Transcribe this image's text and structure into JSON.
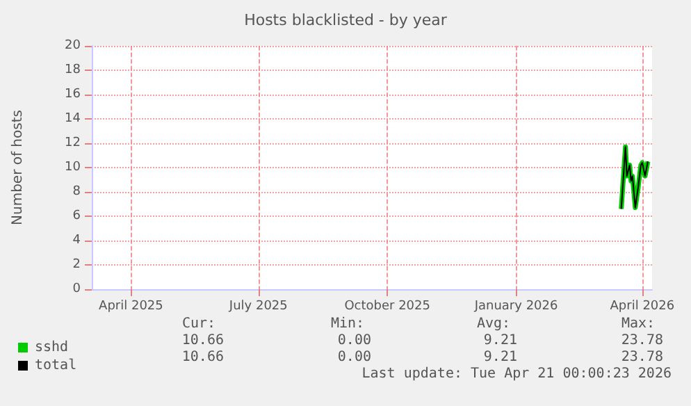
{
  "chart_data": {
    "type": "line",
    "title": "Hosts blacklisted - by year",
    "ylabel": "Number of hosts",
    "x": [
      "2026-04-01",
      "2026-04-04",
      "2026-04-05",
      "2026-04-07",
      "2026-04-08",
      "2026-04-09",
      "2026-04-11",
      "2026-04-13",
      "2026-04-15",
      "2026-04-16",
      "2026-04-18",
      "2026-04-20"
    ],
    "series": [
      {
        "name": "sshd",
        "color": "#00cc00",
        "values": [
          6.6,
          11.7,
          9.3,
          10.2,
          8.9,
          9.3,
          6.7,
          8.3,
          10.2,
          10.4,
          9.3,
          10.5
        ]
      },
      {
        "name": "total",
        "color": "#000000",
        "values": [
          6.6,
          11.7,
          9.3,
          10.2,
          8.9,
          9.3,
          6.7,
          8.3,
          10.2,
          10.4,
          9.3,
          10.5
        ]
      }
    ],
    "xlim": [
      "2025-03-19",
      "2026-04-23"
    ],
    "xticks": [
      {
        "value": "2025-04-16",
        "label": "April 2025"
      },
      {
        "value": "2025-07-16",
        "label": "July 2025"
      },
      {
        "value": "2025-10-16",
        "label": "October 2025"
      },
      {
        "value": "2026-01-16",
        "label": "January 2026"
      },
      {
        "value": "2026-04-16",
        "label": "April 2026"
      }
    ],
    "ylim": [
      0,
      20
    ],
    "yticks": [
      0,
      2,
      4,
      6,
      8,
      10,
      12,
      14,
      16,
      18,
      20
    ],
    "grid": true,
    "legend": "bottom",
    "annotations": [
      "Cur:",
      "Min:",
      "Avg:",
      "Max:",
      "10.66",
      "0.00",
      "9.21",
      "23.78",
      "10.66",
      "0.00",
      "9.21",
      "23.78",
      "Last update: Tue Apr 21 00:00:23 2026"
    ]
  }
}
